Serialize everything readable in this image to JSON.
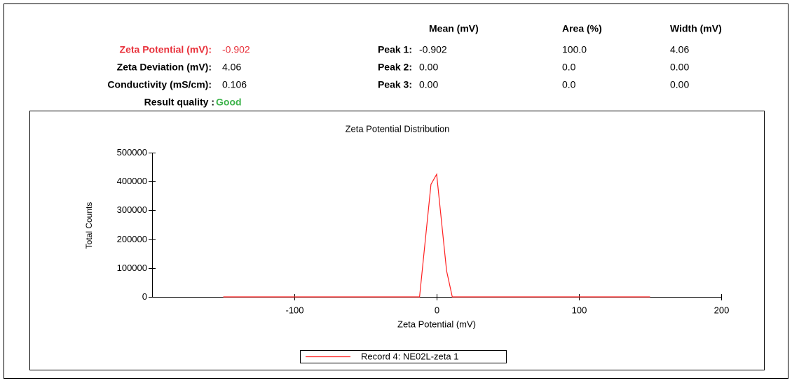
{
  "results": {
    "rows": [
      {
        "label": "Zeta Potential (mV):",
        "value": "-0.902"
      },
      {
        "label": "Zeta Deviation (mV):",
        "value": "4.06"
      },
      {
        "label": "Conductivity (mS/cm):",
        "value": "0.106"
      }
    ],
    "quality_label": "Result quality :",
    "quality": "Good"
  },
  "peaks": {
    "headers": [
      "Mean (mV)",
      "Area (%)",
      "Width (mV)"
    ],
    "rows": [
      {
        "label": "Peak 1:",
        "values": [
          "-0.902",
          "100.0",
          "4.06"
        ]
      },
      {
        "label": "Peak 2:",
        "values": [
          "0.00",
          "0.0",
          "0.00"
        ]
      },
      {
        "label": "Peak 3:",
        "values": [
          "0.00",
          "0.0",
          "0.00"
        ]
      }
    ]
  },
  "chart_data": {
    "type": "line",
    "title": "Zeta Potential Distribution",
    "x_label": "Zeta Potential (mV)",
    "y_label": "Total Counts",
    "x": [
      -150,
      -12,
      -4,
      0,
      7,
      11,
      150
    ],
    "series": [
      {
        "name": "Record 4: NE02L-zeta 1",
        "color": "#ff2020",
        "values": [
          0,
          0,
          390000,
          425000,
          90000,
          0,
          0
        ]
      }
    ],
    "xlim": [
      -200,
      200
    ],
    "xticks": [
      -100,
      0,
      100,
      200
    ],
    "ylim": [
      0,
      500000
    ],
    "yticks": [
      0,
      100000,
      200000,
      300000,
      400000,
      500000
    ],
    "legend": "bottom"
  }
}
